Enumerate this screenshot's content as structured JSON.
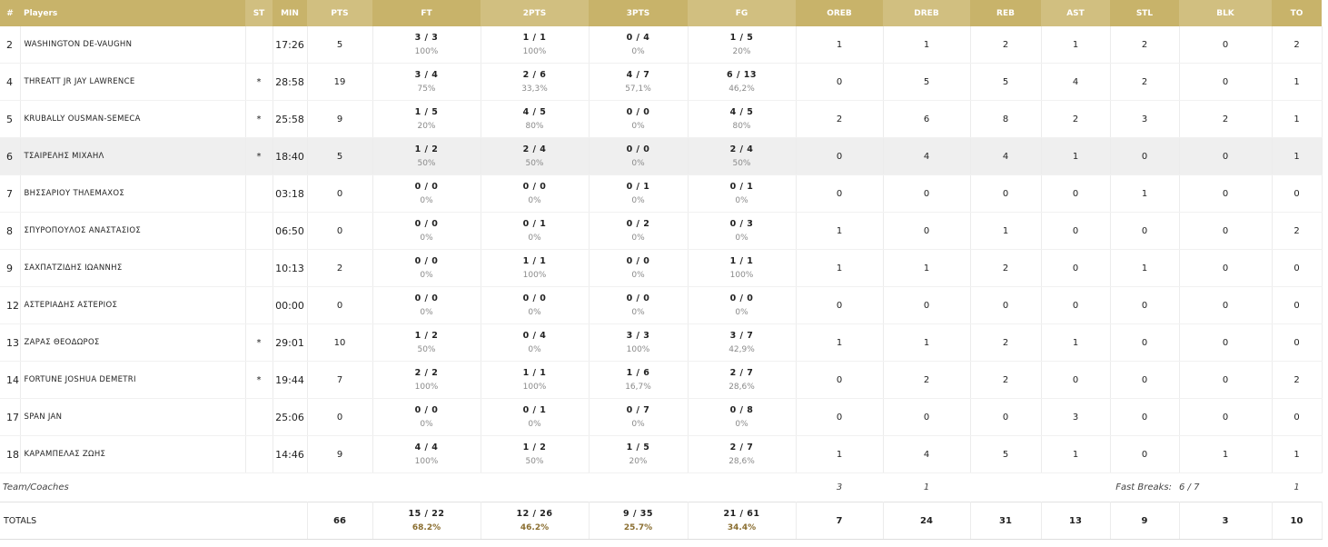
{
  "headers": {
    "num": "#",
    "player": "Players",
    "st": "ST",
    "min": "MIN",
    "pts": "PTS",
    "ft": "FT",
    "two": "2PTS",
    "three": "3PTS",
    "fg": "FG",
    "oreb": "OREB",
    "dreb": "DREB",
    "reb": "REB",
    "ast": "AST",
    "stl": "STL",
    "blk": "BLK",
    "to": "TO"
  },
  "players": [
    {
      "num": "2",
      "name": "WASHINGTON DE-VAUGHN",
      "st": "",
      "min": "17:26",
      "pts": "5",
      "ft": "3 / 3",
      "ft_pct": "100%",
      "two": "1 / 1",
      "two_pct": "100%",
      "three": "0 / 4",
      "three_pct": "0%",
      "fg": "1 / 5",
      "fg_pct": "20%",
      "oreb": "1",
      "dreb": "1",
      "reb": "2",
      "ast": "1",
      "stl": "2",
      "blk": "0",
      "to": "2"
    },
    {
      "num": "4",
      "name": "THREATT JR JAY LAWRENCE",
      "st": "*",
      "min": "28:58",
      "pts": "19",
      "ft": "3 / 4",
      "ft_pct": "75%",
      "two": "2 / 6",
      "two_pct": "33,3%",
      "three": "4 / 7",
      "three_pct": "57,1%",
      "fg": "6 / 13",
      "fg_pct": "46,2%",
      "oreb": "0",
      "dreb": "5",
      "reb": "5",
      "ast": "4",
      "stl": "2",
      "blk": "0",
      "to": "1"
    },
    {
      "num": "5",
      "name": "KRUBALLY OUSMAN-SEMECA",
      "st": "*",
      "min": "25:58",
      "pts": "9",
      "ft": "1 / 5",
      "ft_pct": "20%",
      "two": "4 / 5",
      "two_pct": "80%",
      "three": "0 / 0",
      "three_pct": "0%",
      "fg": "4 / 5",
      "fg_pct": "80%",
      "oreb": "2",
      "dreb": "6",
      "reb": "8",
      "ast": "2",
      "stl": "3",
      "blk": "2",
      "to": "1"
    },
    {
      "num": "6",
      "name": "ΤΣΑΙΡΕΛΗΣ ΜΙΧΑΗΛ",
      "st": "*",
      "min": "18:40",
      "pts": "5",
      "ft": "1 / 2",
      "ft_pct": "50%",
      "two": "2 / 4",
      "two_pct": "50%",
      "three": "0 / 0",
      "three_pct": "0%",
      "fg": "2 / 4",
      "fg_pct": "50%",
      "oreb": "0",
      "dreb": "4",
      "reb": "4",
      "ast": "1",
      "stl": "0",
      "blk": "0",
      "to": "1"
    },
    {
      "num": "7",
      "name": "ΒΗΣΣΑΡΙΟΥ ΤΗΛΕΜΑΧΟΣ",
      "st": "",
      "min": "03:18",
      "pts": "0",
      "ft": "0 / 0",
      "ft_pct": "0%",
      "two": "0 / 0",
      "two_pct": "0%",
      "three": "0 / 1",
      "three_pct": "0%",
      "fg": "0 / 1",
      "fg_pct": "0%",
      "oreb": "0",
      "dreb": "0",
      "reb": "0",
      "ast": "0",
      "stl": "1",
      "blk": "0",
      "to": "0"
    },
    {
      "num": "8",
      "name": "ΣΠΥΡΟΠΟΥΛΟΣ ΑΝΑΣΤΑΣΙΟΣ",
      "st": "",
      "min": "06:50",
      "pts": "0",
      "ft": "0 / 0",
      "ft_pct": "0%",
      "two": "0 / 1",
      "two_pct": "0%",
      "three": "0 / 2",
      "three_pct": "0%",
      "fg": "0 / 3",
      "fg_pct": "0%",
      "oreb": "1",
      "dreb": "0",
      "reb": "1",
      "ast": "0",
      "stl": "0",
      "blk": "0",
      "to": "2"
    },
    {
      "num": "9",
      "name": "ΣΑΧΠΑΤΖΙΔΗΣ ΙΩΑΝΝΗΣ",
      "st": "",
      "min": "10:13",
      "pts": "2",
      "ft": "0 / 0",
      "ft_pct": "0%",
      "two": "1 / 1",
      "two_pct": "100%",
      "three": "0 / 0",
      "three_pct": "0%",
      "fg": "1 / 1",
      "fg_pct": "100%",
      "oreb": "1",
      "dreb": "1",
      "reb": "2",
      "ast": "0",
      "stl": "1",
      "blk": "0",
      "to": "0"
    },
    {
      "num": "12",
      "name": "ΑΣΤΕΡΙΑΔΗΣ ΑΣΤΕΡΙΟΣ",
      "st": "",
      "min": "00:00",
      "pts": "0",
      "ft": "0 / 0",
      "ft_pct": "0%",
      "two": "0 / 0",
      "two_pct": "0%",
      "three": "0 / 0",
      "three_pct": "0%",
      "fg": "0 / 0",
      "fg_pct": "0%",
      "oreb": "0",
      "dreb": "0",
      "reb": "0",
      "ast": "0",
      "stl": "0",
      "blk": "0",
      "to": "0"
    },
    {
      "num": "13",
      "name": "ΖΑΡΑΣ ΘΕΟΔΩΡΟΣ",
      "st": "*",
      "min": "29:01",
      "pts": "10",
      "ft": "1 / 2",
      "ft_pct": "50%",
      "two": "0 / 4",
      "two_pct": "0%",
      "three": "3 / 3",
      "three_pct": "100%",
      "fg": "3 / 7",
      "fg_pct": "42,9%",
      "oreb": "1",
      "dreb": "1",
      "reb": "2",
      "ast": "1",
      "stl": "0",
      "blk": "0",
      "to": "0"
    },
    {
      "num": "14",
      "name": "FORTUNE JOSHUA DEMETRI",
      "st": "*",
      "min": "19:44",
      "pts": "7",
      "ft": "2 / 2",
      "ft_pct": "100%",
      "two": "1 / 1",
      "two_pct": "100%",
      "three": "1 / 6",
      "three_pct": "16,7%",
      "fg": "2 / 7",
      "fg_pct": "28,6%",
      "oreb": "0",
      "dreb": "2",
      "reb": "2",
      "ast": "0",
      "stl": "0",
      "blk": "0",
      "to": "2"
    },
    {
      "num": "17",
      "name": "SPAN JAN",
      "st": "",
      "min": "25:06",
      "pts": "0",
      "ft": "0 / 0",
      "ft_pct": "0%",
      "two": "0 / 1",
      "two_pct": "0%",
      "three": "0 / 7",
      "three_pct": "0%",
      "fg": "0 / 8",
      "fg_pct": "0%",
      "oreb": "0",
      "dreb": "0",
      "reb": "0",
      "ast": "3",
      "stl": "0",
      "blk": "0",
      "to": "0"
    },
    {
      "num": "18",
      "name": "ΚΑΡΑΜΠΕΛΑΣ ΖΩΗΣ",
      "st": "",
      "min": "14:46",
      "pts": "9",
      "ft": "4 / 4",
      "ft_pct": "100%",
      "two": "1 / 2",
      "two_pct": "50%",
      "three": "1 / 5",
      "three_pct": "20%",
      "fg": "2 / 7",
      "fg_pct": "28,6%",
      "oreb": "1",
      "dreb": "4",
      "reb": "5",
      "ast": "1",
      "stl": "0",
      "blk": "1",
      "to": "1"
    }
  ],
  "team": {
    "label": "Team/Coaches",
    "oreb": "3",
    "dreb": "1",
    "fast_breaks_label": "Fast Breaks:",
    "fast_breaks": "6 / 7",
    "to": "1"
  },
  "totals": {
    "label": "TOTALS",
    "pts": "66",
    "ft": "15 / 22",
    "ft_pct": "68.2%",
    "two": "12 / 26",
    "two_pct": "46.2%",
    "three": "9 / 35",
    "three_pct": "25.7%",
    "fg": "21 / 61",
    "fg_pct": "34.4%",
    "oreb": "7",
    "dreb": "24",
    "reb": "31",
    "ast": "13",
    "stl": "9",
    "blk": "3",
    "to": "10"
  },
  "colors": {
    "header": "#c8b36a",
    "header_alt": "#d1bf80",
    "highlight_row": "#efefef",
    "totals_pct": "#8a6e30"
  }
}
